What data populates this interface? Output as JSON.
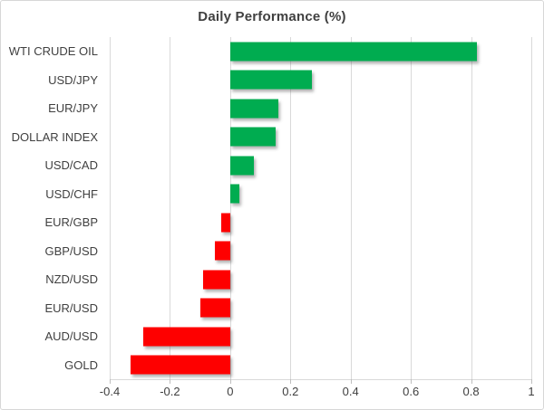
{
  "chart": {
    "title": "Daily Performance (%)"
  },
  "chart_data": {
    "type": "bar",
    "orientation": "horizontal",
    "title": "Daily Performance (%)",
    "categories": [
      "WTI CRUDE OIL",
      "USD/JPY",
      "EUR/JPY",
      "DOLLAR INDEX",
      "USD/CAD",
      "USD/CHF",
      "EUR/GBP",
      "GBP/USD",
      "NZD/USD",
      "EUR/USD",
      "AUD/USD",
      "GOLD"
    ],
    "values": [
      0.82,
      0.27,
      0.16,
      0.15,
      0.08,
      0.03,
      -0.03,
      -0.05,
      -0.09,
      -0.1,
      -0.29,
      -0.33
    ],
    "xlabel": "",
    "ylabel": "",
    "xlim": [
      -0.4,
      1.0
    ],
    "xticks": [
      -0.4,
      -0.2,
      0,
      0.2,
      0.4,
      0.6,
      0.8,
      1
    ],
    "xtick_labels": [
      "-0.4",
      "-0.2",
      "0",
      "0.2",
      "0.4",
      "0.6",
      "0.8",
      "1"
    ],
    "grid": true,
    "legend": false,
    "positive_color": "#00ac50",
    "negative_color": "#fe0000",
    "gridline_color": "#d9d9d9",
    "text_color": "#404040"
  }
}
